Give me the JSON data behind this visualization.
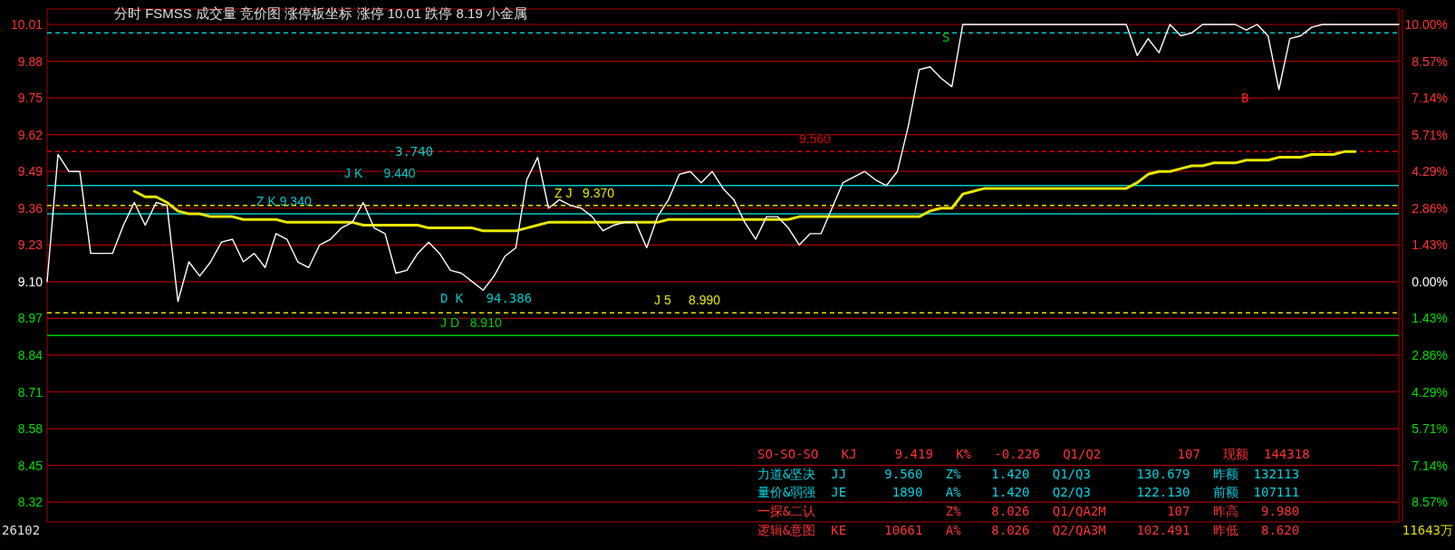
{
  "chart_data": {
    "type": "line",
    "title": "分时 FSMSS 成交量 竞价图 涨停板坐标 涨停 10.01 跌停 8.19 小金属",
    "categories": [
      null,
      null,
      null,
      null,
      null,
      null,
      null,
      null,
      null,
      null,
      null,
      null,
      null,
      null,
      null,
      null,
      null,
      null,
      null,
      null,
      null,
      null,
      null,
      null,
      null,
      null,
      null,
      null,
      null,
      null,
      null,
      null,
      null,
      null,
      null,
      null,
      null,
      null,
      null,
      null,
      null,
      null,
      null,
      null,
      null,
      null,
      null,
      null,
      null,
      null,
      null,
      null,
      null,
      null,
      null,
      null,
      null,
      null,
      null,
      null,
      null,
      null,
      null,
      null,
      null,
      null,
      null,
      null,
      null,
      null,
      null,
      null,
      null,
      null,
      null,
      null,
      null,
      null,
      null,
      null,
      null,
      null,
      null,
      null,
      null,
      null,
      null,
      null,
      null,
      null,
      null,
      null,
      null,
      null,
      null,
      null,
      null,
      null,
      null,
      null,
      null,
      null,
      null,
      null,
      null,
      null,
      null,
      null,
      null,
      null,
      null,
      null,
      null,
      null,
      null,
      null,
      null,
      null,
      null,
      null,
      null,
      null,
      null,
      null,
      null
    ],
    "series": [
      {
        "color": "#ffffff",
        "values": [
          9.1,
          9.55,
          9.49,
          9.49,
          9.2,
          9.2,
          9.2,
          9.3,
          9.38,
          9.3,
          9.38,
          9.37,
          9.03,
          9.17,
          9.12,
          9.17,
          9.24,
          9.25,
          9.17,
          9.2,
          9.15,
          9.27,
          9.25,
          9.17,
          9.15,
          9.23,
          9.25,
          9.29,
          9.31,
          9.38,
          9.29,
          9.27,
          9.13,
          9.14,
          9.2,
          9.24,
          9.2,
          9.14,
          9.13,
          9.1,
          9.07,
          9.12,
          9.19,
          9.22,
          9.46,
          9.54,
          9.36,
          9.39,
          9.37,
          9.36,
          9.33,
          9.28,
          9.3,
          9.31,
          9.31,
          9.22,
          9.33,
          9.39,
          9.48,
          9.49,
          9.45,
          9.49,
          9.43,
          9.39,
          9.31,
          9.25,
          9.33,
          9.33,
          9.29,
          9.23,
          9.27,
          9.27,
          9.36,
          9.45,
          9.47,
          9.49,
          9.46,
          9.44,
          9.49,
          9.65,
          9.85,
          9.86,
          9.82,
          9.79,
          10.01,
          10.01,
          10.01,
          10.01,
          10.01,
          10.01,
          10.01,
          10.01,
          10.01,
          10.01,
          10.01,
          10.01,
          10.01,
          10.01,
          10.01,
          10.01,
          9.9,
          9.96,
          9.91,
          10.01,
          9.97,
          9.98,
          10.01,
          10.01,
          10.01,
          10.01,
          9.99,
          10.01,
          9.97,
          9.78,
          9.96,
          9.97,
          10.0,
          10.01,
          10.01,
          10.01,
          10.01,
          10.01,
          10.01,
          10.01,
          10.01
        ]
      },
      {
        "color": "#e6e600",
        "values": [
          null,
          null,
          null,
          null,
          null,
          null,
          null,
          null,
          9.42,
          9.4,
          9.4,
          9.38,
          9.35,
          9.34,
          9.34,
          9.33,
          9.33,
          9.33,
          9.32,
          9.32,
          9.32,
          9.32,
          9.31,
          9.31,
          9.31,
          9.31,
          9.31,
          9.31,
          9.31,
          9.3,
          9.3,
          9.3,
          9.3,
          9.3,
          9.3,
          9.29,
          9.29,
          9.29,
          9.29,
          9.29,
          9.28,
          9.28,
          9.28,
          9.28,
          9.29,
          9.3,
          9.31,
          9.31,
          9.31,
          9.31,
          9.31,
          9.31,
          9.31,
          9.31,
          9.31,
          9.31,
          9.31,
          9.32,
          9.32,
          9.32,
          9.32,
          9.32,
          9.32,
          9.32,
          9.32,
          9.32,
          9.32,
          9.32,
          9.32,
          9.33,
          9.33,
          9.33,
          9.33,
          9.33,
          9.33,
          9.33,
          9.33,
          9.33,
          9.33,
          9.33,
          9.33,
          9.35,
          9.36,
          9.36,
          9.41,
          9.42,
          9.43,
          9.43,
          9.43,
          9.43,
          9.43,
          9.43,
          9.43,
          9.43,
          9.43,
          9.43,
          9.43,
          9.43,
          9.43,
          9.43,
          9.45,
          9.48,
          9.49,
          9.49,
          9.5,
          9.51,
          9.51,
          9.52,
          9.52,
          9.52,
          9.53,
          9.53,
          9.53,
          9.54,
          9.54,
          9.54,
          9.55,
          9.55,
          9.55,
          9.56,
          9.56,
          null,
          null,
          null,
          null
        ]
      }
    ],
    "ylim": [
      8.25,
      10.01
    ],
    "yticks": [
      10.01,
      9.88,
      9.75,
      9.62,
      9.49,
      9.36,
      9.23,
      {
        "value": 9.1,
        "label": "9.10"
      },
      8.97,
      8.84,
      8.71,
      8.58,
      8.45,
      8.32
    ],
    "y2lim": [
      -9.34,
      10.0
    ],
    "y2ticks": [
      {
        "value": 10,
        "label": "10.00%"
      },
      {
        "value": 8.57,
        "label": "8.57%"
      },
      {
        "value": 7.14,
        "label": "7.14%"
      },
      {
        "value": 5.71,
        "label": "5.71%"
      },
      {
        "value": 4.29,
        "label": "4.29%"
      },
      {
        "value": 2.86,
        "label": "2.86%"
      },
      {
        "value": 1.43,
        "label": "1.43%"
      },
      {
        "value": 0,
        "label": "0.00%"
      },
      {
        "value": -1.43,
        "label": "1.43%"
      },
      {
        "value": -2.86,
        "label": "2.86%"
      },
      {
        "value": -4.29,
        "label": "4.29%"
      },
      {
        "value": -5.71,
        "label": "5.71%"
      },
      {
        "value": -7.14,
        "label": "7.14%"
      },
      {
        "value": -8.57,
        "label": "8.57%"
      }
    ],
    "grid": "y",
    "ref_lines": [
      {
        "axis": "y",
        "value": 9.44,
        "label": "J K      9.440",
        "color": "#00c8c8"
      },
      {
        "axis": "y",
        "value": 9.34,
        "label": "Z K 9.340",
        "color": "#00c8c8"
      },
      {
        "axis": "y",
        "value": 9.37,
        "label": "Z J   9.370",
        "color": "#e6e600",
        "line_style": "dashed"
      },
      {
        "axis": "y",
        "value": 9.56,
        "label": "9.560",
        "color": "#dd0000",
        "line_style": "dashed"
      },
      {
        "axis": "y",
        "value": 9.98,
        "color": "#00c8c8",
        "line_style": "dashed"
      },
      {
        "axis": "y",
        "value": 8.99,
        "label": "J 5     8.990",
        "color": "#e6e600",
        "line_style": "dashed"
      },
      {
        "axis": "y",
        "value": 8.91,
        "label": "J D   8.910",
        "color": "#00cc00"
      }
    ],
    "annotations": [
      "3.740",
      "D K   94.386",
      "S",
      "B",
      "26102",
      "11643万",
      "SO-SO-SO   KJ     9.419   K%   -0.226   Q1/Q2          107   现额  144318",
      "力道&坚决  JJ     9.560   Z%    1.420   Q1/Q3      130.679   昨额  132113",
      "量价&弱强  JE      1890   A%    1.420   Q2/Q3      122.130   前额  107111",
      "一探&二认                 Z%    8.026   Q1/QA2M        107   昨高   9.980",
      "逻辑&意图  KE     10661   A%    8.026   Q2/QA3M    102.491   昨低   8.620"
    ]
  }
}
